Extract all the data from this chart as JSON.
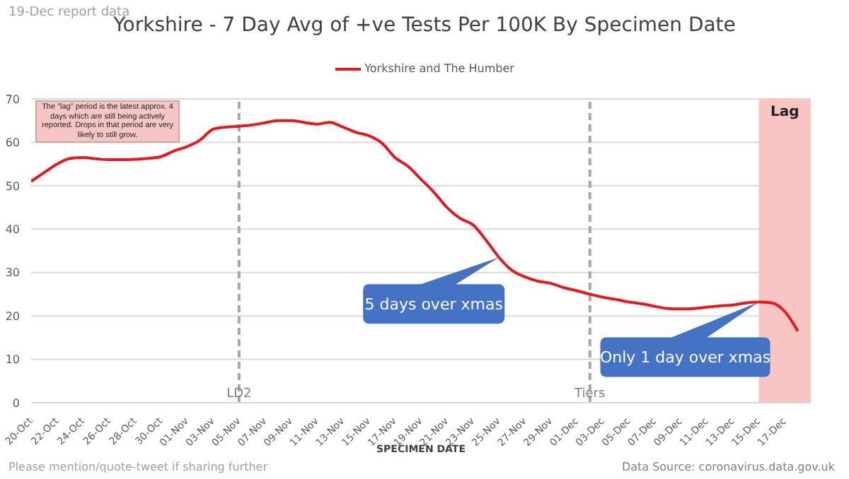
{
  "chart_data": {
    "type": "line",
    "title": "Yorkshire - 7 Day Avg of +ve Tests Per 100K By Specimen Date",
    "xlabel": "SPECIMEN DATE",
    "x": [
      "--10-20",
      "--10-21",
      "--10-22",
      "--10-23",
      "--10-24",
      "--10-25",
      "--10-26",
      "--10-27",
      "--10-28",
      "--10-29",
      "--10-30",
      "--10-31",
      "--11-01",
      "--11-02",
      "--11-03",
      "--11-04",
      "--11-05",
      "--11-06",
      "--11-07",
      "--11-08",
      "--11-09",
      "--11-10",
      "--11-11",
      "--11-12",
      "--11-13",
      "--11-14",
      "--11-15",
      "--11-16",
      "--11-17",
      "--11-18",
      "--11-19",
      "--11-20",
      "--11-21",
      "--11-22",
      "--11-23",
      "--11-24",
      "--11-25",
      "--11-26",
      "--11-27",
      "--11-28",
      "--11-29",
      "--11-30",
      "--12-01",
      "--12-02",
      "--12-03",
      "--12-04",
      "--12-05",
      "--12-06",
      "--12-07",
      "--12-08",
      "--12-09",
      "--12-10",
      "--12-11",
      "--12-12",
      "--12-13",
      "--12-14",
      "--12-15",
      "--12-16",
      "--12-17",
      "--12-18"
    ],
    "series": [
      {
        "name": "Yorkshire and The Humber",
        "color": "#e8181e",
        "values": [
          51,
          53,
          55,
          56.3,
          56.5,
          56.2,
          56,
          56,
          56.1,
          56.3,
          56.7,
          58,
          59,
          60.5,
          63,
          63.5,
          63.7,
          64,
          64.5,
          65,
          65,
          64.6,
          64.2,
          64.6,
          63.5,
          62.3,
          61.5,
          59.8,
          56.5,
          54.5,
          51.5,
          48.5,
          45,
          42.5,
          41,
          37.5,
          33.5,
          30.5,
          29,
          28,
          27.5,
          26.5,
          25.8,
          25,
          24.3,
          23.8,
          23.2,
          22.8,
          22.2,
          21.7,
          21.6,
          21.7,
          22,
          22.3,
          22.5,
          23,
          23.2,
          23,
          21,
          16.5
        ]
      }
    ],
    "xlim": [
      "--10-20",
      "--12-19"
    ],
    "xticks": [
      {
        "value": "--10-20",
        "label": "20-Oct"
      },
      {
        "value": "--10-22",
        "label": "22-Oct"
      },
      {
        "value": "--10-24",
        "label": "24-Oct"
      },
      {
        "value": "--10-26",
        "label": "26-Oct"
      },
      {
        "value": "--10-28",
        "label": "28-Oct"
      },
      {
        "value": "--10-30",
        "label": "30-Oct"
      },
      {
        "value": "--11-01",
        "label": "01-Nov"
      },
      {
        "value": "--11-03",
        "label": "03-Nov"
      },
      {
        "value": "--11-05",
        "label": "05-Nov"
      },
      {
        "value": "--11-07",
        "label": "07-Nov"
      },
      {
        "value": "--11-09",
        "label": "09-Nov"
      },
      {
        "value": "--11-11",
        "label": "11-Nov"
      },
      {
        "value": "--11-13",
        "label": "13-Nov"
      },
      {
        "value": "--11-15",
        "label": "15-Nov"
      },
      {
        "value": "--11-17",
        "label": "17-Nov"
      },
      {
        "value": "--11-19",
        "label": "19-Nov"
      },
      {
        "value": "--11-21",
        "label": "21-Nov"
      },
      {
        "value": "--11-23",
        "label": "23-Nov"
      },
      {
        "value": "--11-25",
        "label": "25-Nov"
      },
      {
        "value": "--11-27",
        "label": "27-Nov"
      },
      {
        "value": "--11-29",
        "label": "29-Nov"
      },
      {
        "value": "--12-01",
        "label": "01-Dec"
      },
      {
        "value": "--12-03",
        "label": "03-Dec"
      },
      {
        "value": "--12-05",
        "label": "05-Dec"
      },
      {
        "value": "--12-07",
        "label": "07-Dec"
      },
      {
        "value": "--12-09",
        "label": "09-Dec"
      },
      {
        "value": "--12-11",
        "label": "11-Dec"
      },
      {
        "value": "--12-13",
        "label": "13-Dec"
      },
      {
        "value": "--12-15",
        "label": "15-Dec"
      },
      {
        "value": "--12-17",
        "label": "17-Dec"
      }
    ],
    "ylim": [
      0,
      70
    ],
    "yticks": [
      0,
      10,
      20,
      30,
      40,
      50,
      60,
      70
    ],
    "grid": "y",
    "legend": "top",
    "marker": "none",
    "line_style": "solid",
    "ref_lines": [
      {
        "axis": "x",
        "value": "--11-05",
        "label": "LD2",
        "color": "#a6a6a6",
        "line_style": "dashed"
      },
      {
        "axis": "x",
        "value": "--12-02",
        "label": "Tiers",
        "color": "#a6a6a6",
        "line_style": "dashed"
      }
    ],
    "bands": [
      {
        "axis": "x",
        "from": "--12-15",
        "to": "--12-19",
        "label": "Lag",
        "color": "#f8c4c4"
      }
    ],
    "annotations": [
      "19-Dec report data",
      "The \"lag\" period is the latest approx. 4 days which are still being actively reported. Drops in that period are very likely to still grow.",
      {
        "text": "5 days over xmas",
        "x": "--11-25",
        "y": 33.5
      },
      {
        "text": "Only 1 day over xmas",
        "x": "--12-15",
        "y": 23.2
      },
      "Please mention/quote-tweet if sharing further",
      "Data Source: coronavirus.data.gov.uk"
    ]
  }
}
